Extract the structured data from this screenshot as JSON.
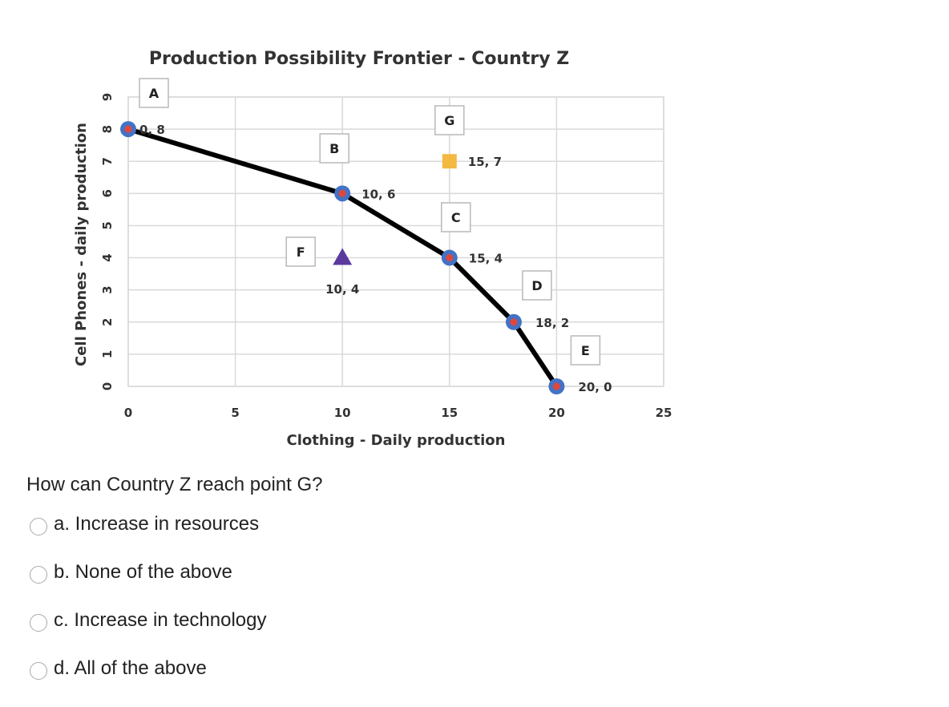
{
  "chart_data": {
    "type": "line",
    "title": "Production Possibility Frontier - Country Z",
    "xlabel": "Clothing - Daily production",
    "ylabel": "Cell Phones - daily production",
    "xlim": [
      0,
      25
    ],
    "ylim": [
      0,
      9
    ],
    "xticks": [
      0,
      5,
      10,
      15,
      20,
      25
    ],
    "yticks": [
      0,
      1,
      2,
      3,
      4,
      5,
      6,
      7,
      8,
      9
    ],
    "grid": true,
    "series": [
      {
        "points": [
          {
            "x": 0,
            "y": 8,
            "letter": "A",
            "label": "0, 8"
          },
          {
            "x": 10,
            "y": 6,
            "letter": "B",
            "label": "10, 6"
          },
          {
            "x": 15,
            "y": 4,
            "letter": "C",
            "label": "15, 4"
          },
          {
            "x": 18,
            "y": 2,
            "letter": "D",
            "label": "18, 2"
          },
          {
            "x": 20,
            "y": 0,
            "letter": "E",
            "label": "20, 0"
          }
        ],
        "color": "#000000",
        "marker_color": "#4472c4",
        "marker_center": "#e0473c"
      }
    ],
    "extra_points": [
      {
        "x": 10,
        "y": 4,
        "letter": "F",
        "label": "10, 4",
        "marker": "triangle",
        "color": "#5b3a9e"
      },
      {
        "x": 15,
        "y": 7,
        "letter": "G",
        "label": "15, 7",
        "marker": "square",
        "color": "#f4b942"
      }
    ]
  },
  "question": {
    "text": "How can Country Z reach point G?",
    "options": [
      {
        "label": "a. Increase in resources"
      },
      {
        "label": "b. None of the above"
      },
      {
        "label": "c. Increase in technology"
      },
      {
        "label": "d. All of the above"
      }
    ]
  }
}
